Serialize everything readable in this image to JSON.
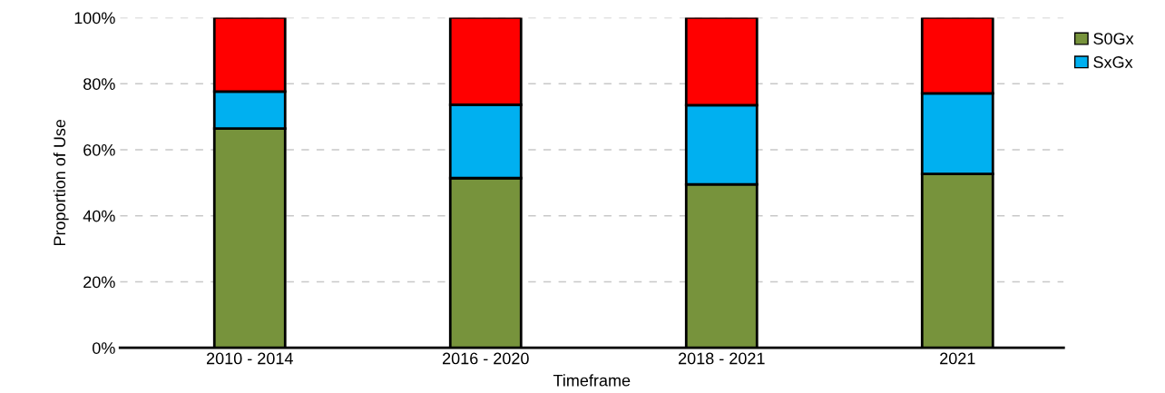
{
  "chart_data": {
    "type": "bar",
    "stacked": true,
    "xlabel": "Timeframe",
    "ylabel": "Proportion of Use",
    "categories": [
      "2010 - 2014",
      "2016 - 2020",
      "2018 - 2021",
      "2021"
    ],
    "series": [
      {
        "name": "S0Gx",
        "color": "#77933c",
        "values": [
          66.4,
          51.4,
          49.5,
          52.7
        ]
      },
      {
        "name": "SxGx",
        "color": "#00b0f0",
        "values": [
          11.2,
          22.2,
          24.0,
          24.4
        ]
      },
      {
        "color": "#ff0000",
        "values": [
          22.4,
          26.4,
          26.5,
          22.9
        ]
      }
    ],
    "ylim": [
      0,
      100
    ],
    "yticks": [
      {
        "value": 0,
        "label": "0%"
      },
      {
        "value": 20,
        "label": "20%"
      },
      {
        "value": 40,
        "label": "40%"
      },
      {
        "value": 60,
        "label": "60%"
      },
      {
        "value": 80,
        "label": "80%"
      },
      {
        "value": 100,
        "label": "100%"
      }
    ],
    "grid": "y",
    "legend": "top right"
  }
}
